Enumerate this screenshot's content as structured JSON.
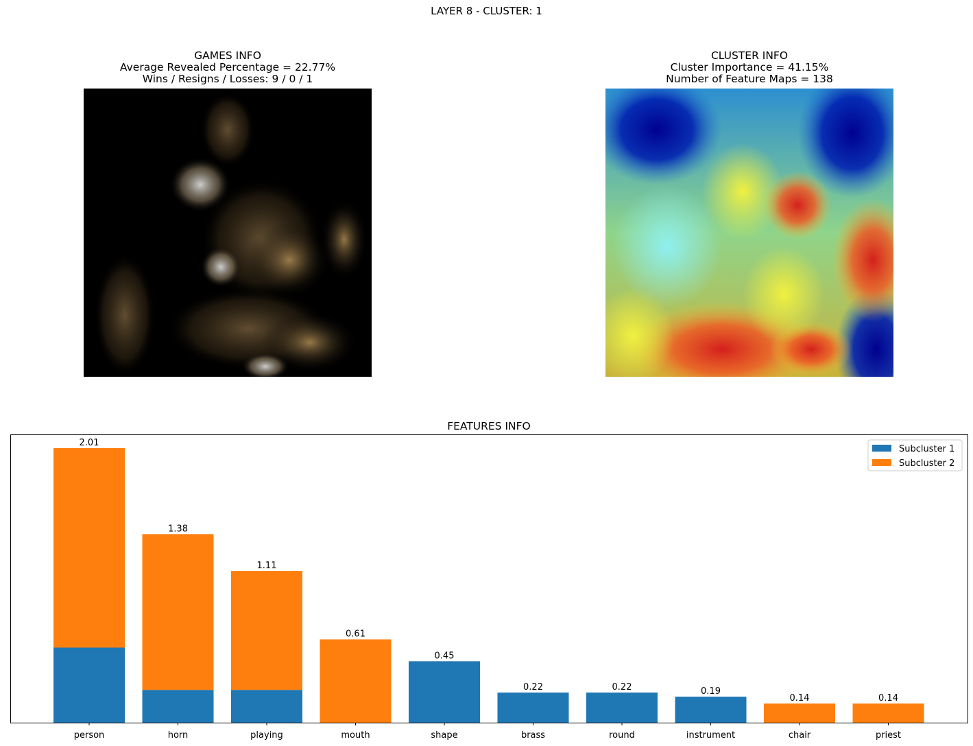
{
  "suptitle": "LAYER 8 - CLUSTER: 1",
  "games_info": {
    "title": "GAMES INFO",
    "line1": "Average Revealed Percentage = 22.77%",
    "line2": "Wins / Resigns / Losses: 9 / 0 / 1"
  },
  "cluster_info": {
    "title": "CLUSTER INFO",
    "line1": "Cluster Importance = 41.15%",
    "line2": "Number of Feature Maps = 138"
  },
  "colors": {
    "subcluster_1": "#1f77b4",
    "subcluster_2": "#ff7f0e"
  },
  "chart_data": {
    "type": "bar",
    "stacked": true,
    "title": "FEATURES INFO",
    "categories": [
      "person",
      "horn",
      "playing",
      "mouth",
      "shape",
      "brass",
      "round",
      "instrument",
      "chair",
      "priest"
    ],
    "series": [
      {
        "name": "Subcluster 1",
        "values": [
          0.55,
          0.24,
          0.24,
          0.0,
          0.45,
          0.22,
          0.22,
          0.19,
          0.0,
          0.0
        ]
      },
      {
        "name": "Subcluster 2",
        "values": [
          1.46,
          1.14,
          0.87,
          0.61,
          0.0,
          0.0,
          0.0,
          0.0,
          0.14,
          0.14
        ]
      }
    ],
    "totals": [
      2.01,
      1.38,
      1.11,
      0.61,
      0.45,
      0.22,
      0.22,
      0.19,
      0.14,
      0.14
    ],
    "total_labels": [
      "2.01",
      "1.38",
      "1.11",
      "0.61",
      "0.45",
      "0.22",
      "0.22",
      "0.19",
      "0.14",
      "0.14"
    ],
    "ylim": [
      0,
      2.11
    ],
    "yticks_visible": false,
    "legend_position": "upper right"
  }
}
